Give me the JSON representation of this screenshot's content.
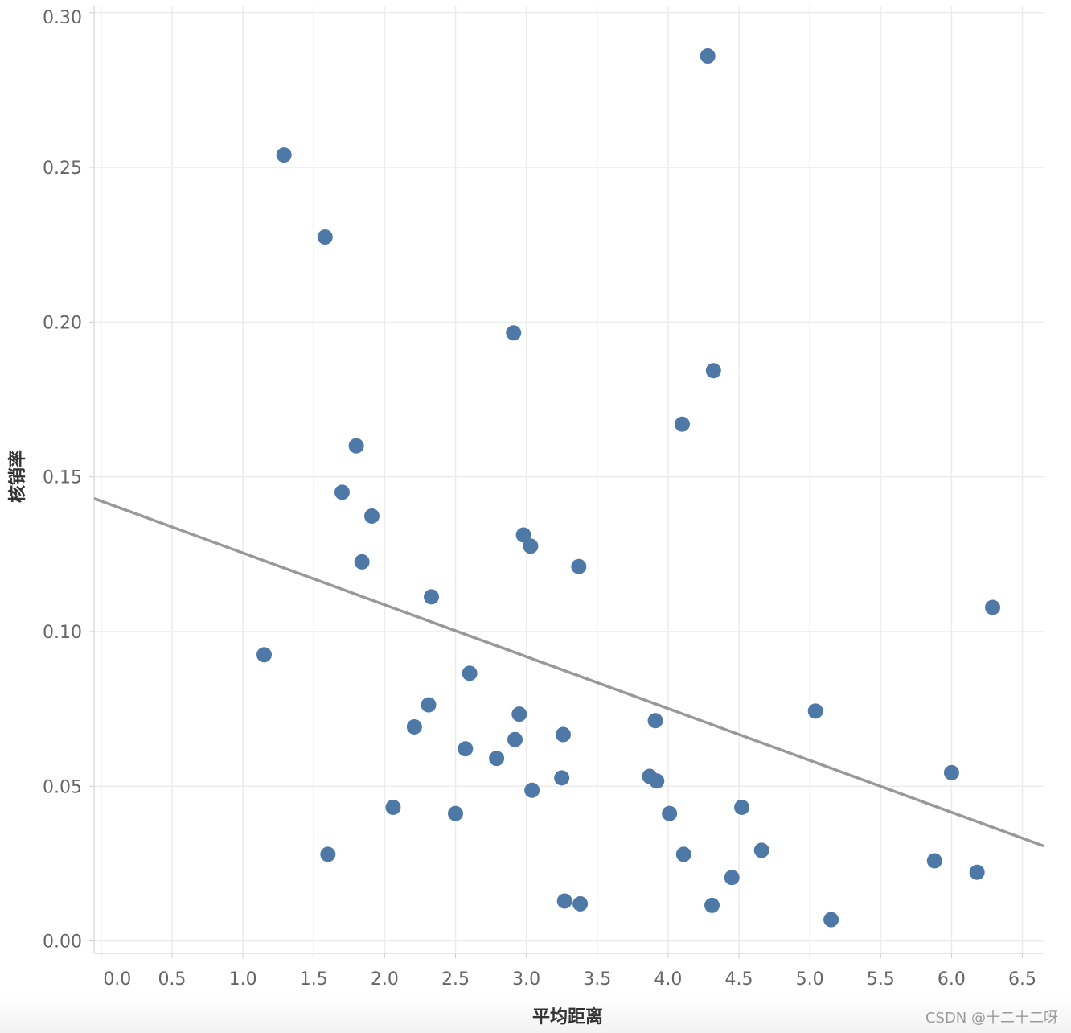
{
  "chart_data": {
    "type": "scatter",
    "title": "",
    "xlabel": "平均距离",
    "ylabel": "核销率",
    "xlim": [
      -0.05,
      6.65
    ],
    "ylim": [
      -0.004,
      0.302
    ],
    "x_ticks": [
      "0.0",
      "0.5",
      "1.0",
      "1.5",
      "2.0",
      "2.5",
      "3.0",
      "3.5",
      "4.0",
      "4.5",
      "5.0",
      "5.5",
      "6.0",
      "6.5"
    ],
    "y_ticks": [
      "0.00",
      "0.05",
      "0.10",
      "0.15",
      "0.20",
      "0.25",
      "0.30"
    ],
    "grid": true,
    "colors": {
      "points": "#4e79a7",
      "trendline": "#999999",
      "grid": "#ececec"
    },
    "series": [
      {
        "points": [
          [
            1.15,
            0.0925
          ],
          [
            1.29,
            0.254
          ],
          [
            1.58,
            0.2275
          ],
          [
            1.6,
            0.028
          ],
          [
            1.7,
            0.145
          ],
          [
            1.8,
            0.16
          ],
          [
            1.84,
            0.1225
          ],
          [
            1.91,
            0.1373
          ],
          [
            2.06,
            0.0432
          ],
          [
            2.21,
            0.0692
          ],
          [
            2.31,
            0.0763
          ],
          [
            2.33,
            0.1112
          ],
          [
            2.5,
            0.0412
          ],
          [
            2.57,
            0.0621
          ],
          [
            2.6,
            0.0865
          ],
          [
            2.79,
            0.059
          ],
          [
            2.91,
            0.1965
          ],
          [
            2.92,
            0.0651
          ],
          [
            2.95,
            0.0733
          ],
          [
            2.98,
            0.1312
          ],
          [
            3.03,
            0.1276
          ],
          [
            3.04,
            0.0487
          ],
          [
            3.25,
            0.0527
          ],
          [
            3.26,
            0.0667
          ],
          [
            3.27,
            0.0129
          ],
          [
            3.37,
            0.121
          ],
          [
            3.38,
            0.012
          ],
          [
            3.87,
            0.0532
          ],
          [
            3.91,
            0.0712
          ],
          [
            3.92,
            0.0517
          ],
          [
            4.01,
            0.0412
          ],
          [
            4.1,
            0.167
          ],
          [
            4.11,
            0.028
          ],
          [
            4.28,
            0.286
          ],
          [
            4.31,
            0.0115
          ],
          [
            4.32,
            0.1843
          ],
          [
            4.45,
            0.0205
          ],
          [
            4.52,
            0.0432
          ],
          [
            4.66,
            0.0293
          ],
          [
            5.04,
            0.0743
          ],
          [
            5.15,
            0.0069
          ],
          [
            5.88,
            0.0259
          ],
          [
            6.0,
            0.0544
          ],
          [
            6.18,
            0.0222
          ],
          [
            6.29,
            0.1078
          ]
        ]
      }
    ],
    "trendline": {
      "x": [
        -0.05,
        6.65
      ],
      "y": [
        0.143,
        0.0307
      ]
    }
  },
  "watermark": "CSDN @十二十二呀"
}
